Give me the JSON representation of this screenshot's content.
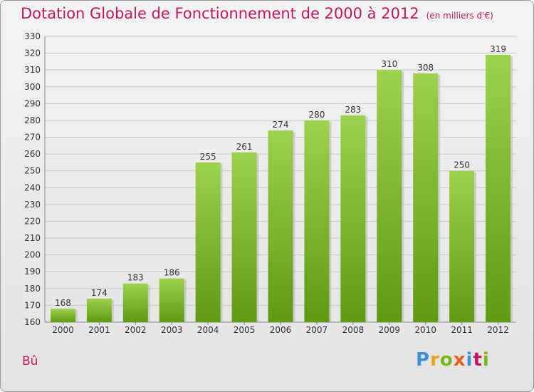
{
  "title": "Dotation Globale de Fonctionnement de 2000 à 2012",
  "unit_note": "(en milliers d'€)",
  "town": "Bû",
  "logo": {
    "letters": [
      "P",
      "r",
      "o",
      "x",
      "i",
      "t",
      "i"
    ],
    "colors": [
      "#3d8fd6",
      "#e8a317",
      "#7cb518",
      "#e8601c",
      "#3d8fd6",
      "#c2185b",
      "#7cb518"
    ]
  },
  "colors": {
    "bar_top": "#9ed14c",
    "bar_bottom": "#5e9a12",
    "title": "#c2185b",
    "grid": "#c8c8c8"
  },
  "chart_data": {
    "type": "bar",
    "title": "Dotation Globale de Fonctionnement de 2000 à 2012",
    "categories": [
      "2000",
      "2001",
      "2002",
      "2003",
      "2004",
      "2005",
      "2006",
      "2007",
      "2008",
      "2009",
      "2010",
      "2011",
      "2012"
    ],
    "values": [
      168,
      174,
      183,
      186,
      255,
      261,
      274,
      280,
      283,
      310,
      308,
      250,
      319
    ],
    "ylim": [
      160,
      330
    ],
    "ytick_step": 10,
    "grid": true,
    "data_labels": true
  }
}
